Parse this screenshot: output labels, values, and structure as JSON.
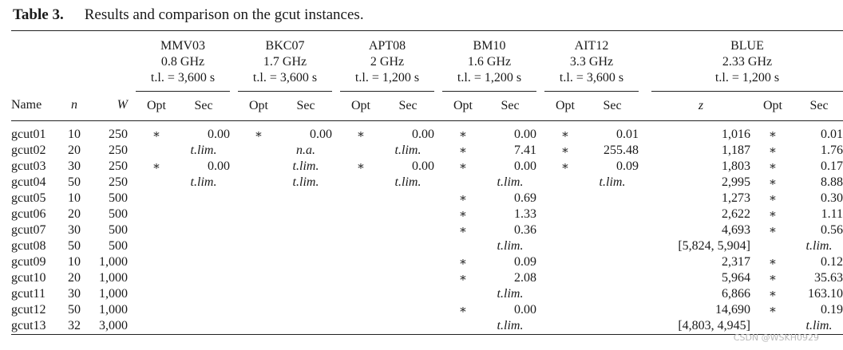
{
  "caption": {
    "label": "Table 3.",
    "text": "Results and comparison on the gcut instances."
  },
  "groups": [
    {
      "name": "MMV03",
      "speed": "0.8 GHz",
      "tl": "t.l. = 3,600 s"
    },
    {
      "name": "BKC07",
      "speed": "1.7 GHz",
      "tl": "t.l. = 3,600 s"
    },
    {
      "name": "APT08",
      "speed": "2 GHz",
      "tl": "t.l. = 1,200 s"
    },
    {
      "name": "BM10",
      "speed": "1.6 GHz",
      "tl": "t.l. = 1,200 s"
    },
    {
      "name": "AIT12",
      "speed": "3.3 GHz",
      "tl": "t.l. = 3,600 s"
    },
    {
      "name": "BLUE",
      "speed": "2.33 GHz",
      "tl": "t.l. = 1,200 s"
    }
  ],
  "columns": {
    "name": "Name",
    "n": "n",
    "w": "W",
    "opt": "Opt",
    "sec": "Sec",
    "z": "z"
  },
  "rows": [
    {
      "name": "gcut01",
      "n": "10",
      "w": "250",
      "mmv_opt": "∗",
      "mmv_sec": "0.00",
      "bkc_opt": "∗",
      "bkc_sec": "0.00",
      "apt_opt": "∗",
      "apt_sec": "0.00",
      "bm_opt": "∗",
      "bm_sec": "0.00",
      "ait_opt": "∗",
      "ait_sec": "0.01",
      "z": "1,016",
      "blue_opt": "∗",
      "blue_sec": "0.01"
    },
    {
      "name": "gcut02",
      "n": "20",
      "w": "250",
      "mmv_opt": "",
      "mmv_sec": "t.lim.",
      "bkc_opt": "",
      "bkc_sec": "n.a.",
      "apt_opt": "",
      "apt_sec": "t.lim.",
      "bm_opt": "∗",
      "bm_sec": "7.41",
      "ait_opt": "∗",
      "ait_sec": "255.48",
      "z": "1,187",
      "blue_opt": "∗",
      "blue_sec": "1.76"
    },
    {
      "name": "gcut03",
      "n": "30",
      "w": "250",
      "mmv_opt": "∗",
      "mmv_sec": "0.00",
      "bkc_opt": "",
      "bkc_sec": "t.lim.",
      "apt_opt": "∗",
      "apt_sec": "0.00",
      "bm_opt": "∗",
      "bm_sec": "0.00",
      "ait_opt": "∗",
      "ait_sec": "0.09",
      "z": "1,803",
      "blue_opt": "∗",
      "blue_sec": "0.17"
    },
    {
      "name": "gcut04",
      "n": "50",
      "w": "250",
      "mmv_opt": "",
      "mmv_sec": "t.lim.",
      "bkc_opt": "",
      "bkc_sec": "t.lim.",
      "apt_opt": "",
      "apt_sec": "t.lim.",
      "bm_opt": "",
      "bm_sec": "t.lim.",
      "ait_opt": "",
      "ait_sec": "t.lim.",
      "z": "2,995",
      "blue_opt": "∗",
      "blue_sec": "8.88"
    },
    {
      "name": "gcut05",
      "n": "10",
      "w": "500",
      "mmv_opt": "",
      "mmv_sec": "",
      "bkc_opt": "",
      "bkc_sec": "",
      "apt_opt": "",
      "apt_sec": "",
      "bm_opt": "∗",
      "bm_sec": "0.69",
      "ait_opt": "",
      "ait_sec": "",
      "z": "1,273",
      "blue_opt": "∗",
      "blue_sec": "0.30"
    },
    {
      "name": "gcut06",
      "n": "20",
      "w": "500",
      "mmv_opt": "",
      "mmv_sec": "",
      "bkc_opt": "",
      "bkc_sec": "",
      "apt_opt": "",
      "apt_sec": "",
      "bm_opt": "∗",
      "bm_sec": "1.33",
      "ait_opt": "",
      "ait_sec": "",
      "z": "2,622",
      "blue_opt": "∗",
      "blue_sec": "1.11"
    },
    {
      "name": "gcut07",
      "n": "30",
      "w": "500",
      "mmv_opt": "",
      "mmv_sec": "",
      "bkc_opt": "",
      "bkc_sec": "",
      "apt_opt": "",
      "apt_sec": "",
      "bm_opt": "∗",
      "bm_sec": "0.36",
      "ait_opt": "",
      "ait_sec": "",
      "z": "4,693",
      "blue_opt": "∗",
      "blue_sec": "0.56"
    },
    {
      "name": "gcut08",
      "n": "50",
      "w": "500",
      "mmv_opt": "",
      "mmv_sec": "",
      "bkc_opt": "",
      "bkc_sec": "",
      "apt_opt": "",
      "apt_sec": "",
      "bm_opt": "",
      "bm_sec": "t.lim.",
      "ait_opt": "",
      "ait_sec": "",
      "z": "[5,824, 5,904]",
      "blue_opt": "",
      "blue_sec": "t.lim."
    },
    {
      "name": "gcut09",
      "n": "10",
      "w": "1,000",
      "mmv_opt": "",
      "mmv_sec": "",
      "bkc_opt": "",
      "bkc_sec": "",
      "apt_opt": "",
      "apt_sec": "",
      "bm_opt": "∗",
      "bm_sec": "0.09",
      "ait_opt": "",
      "ait_sec": "",
      "z": "2,317",
      "blue_opt": "∗",
      "blue_sec": "0.12"
    },
    {
      "name": "gcut10",
      "n": "20",
      "w": "1,000",
      "mmv_opt": "",
      "mmv_sec": "",
      "bkc_opt": "",
      "bkc_sec": "",
      "apt_opt": "",
      "apt_sec": "",
      "bm_opt": "∗",
      "bm_sec": "2.08",
      "ait_opt": "",
      "ait_sec": "",
      "z": "5,964",
      "blue_opt": "∗",
      "blue_sec": "35.63"
    },
    {
      "name": "gcut11",
      "n": "30",
      "w": "1,000",
      "mmv_opt": "",
      "mmv_sec": "",
      "bkc_opt": "",
      "bkc_sec": "",
      "apt_opt": "",
      "apt_sec": "",
      "bm_opt": "",
      "bm_sec": "t.lim.",
      "ait_opt": "",
      "ait_sec": "",
      "z": "6,866",
      "blue_opt": "∗",
      "blue_sec": "163.10"
    },
    {
      "name": "gcut12",
      "n": "50",
      "w": "1,000",
      "mmv_opt": "",
      "mmv_sec": "",
      "bkc_opt": "",
      "bkc_sec": "",
      "apt_opt": "",
      "apt_sec": "",
      "bm_opt": "∗",
      "bm_sec": "0.00",
      "ait_opt": "",
      "ait_sec": "",
      "z": "14,690",
      "blue_opt": "∗",
      "blue_sec": "0.19"
    },
    {
      "name": "gcut13",
      "n": "32",
      "w": "3,000",
      "mmv_opt": "",
      "mmv_sec": "",
      "bkc_opt": "",
      "bkc_sec": "",
      "apt_opt": "",
      "apt_sec": "",
      "bm_opt": "",
      "bm_sec": "t.lim.",
      "ait_opt": "",
      "ait_sec": "",
      "z": "[4,803, 4,945]",
      "blue_opt": "",
      "blue_sec": "t.lim."
    }
  ],
  "watermark": "CSDN @WSKH0929"
}
